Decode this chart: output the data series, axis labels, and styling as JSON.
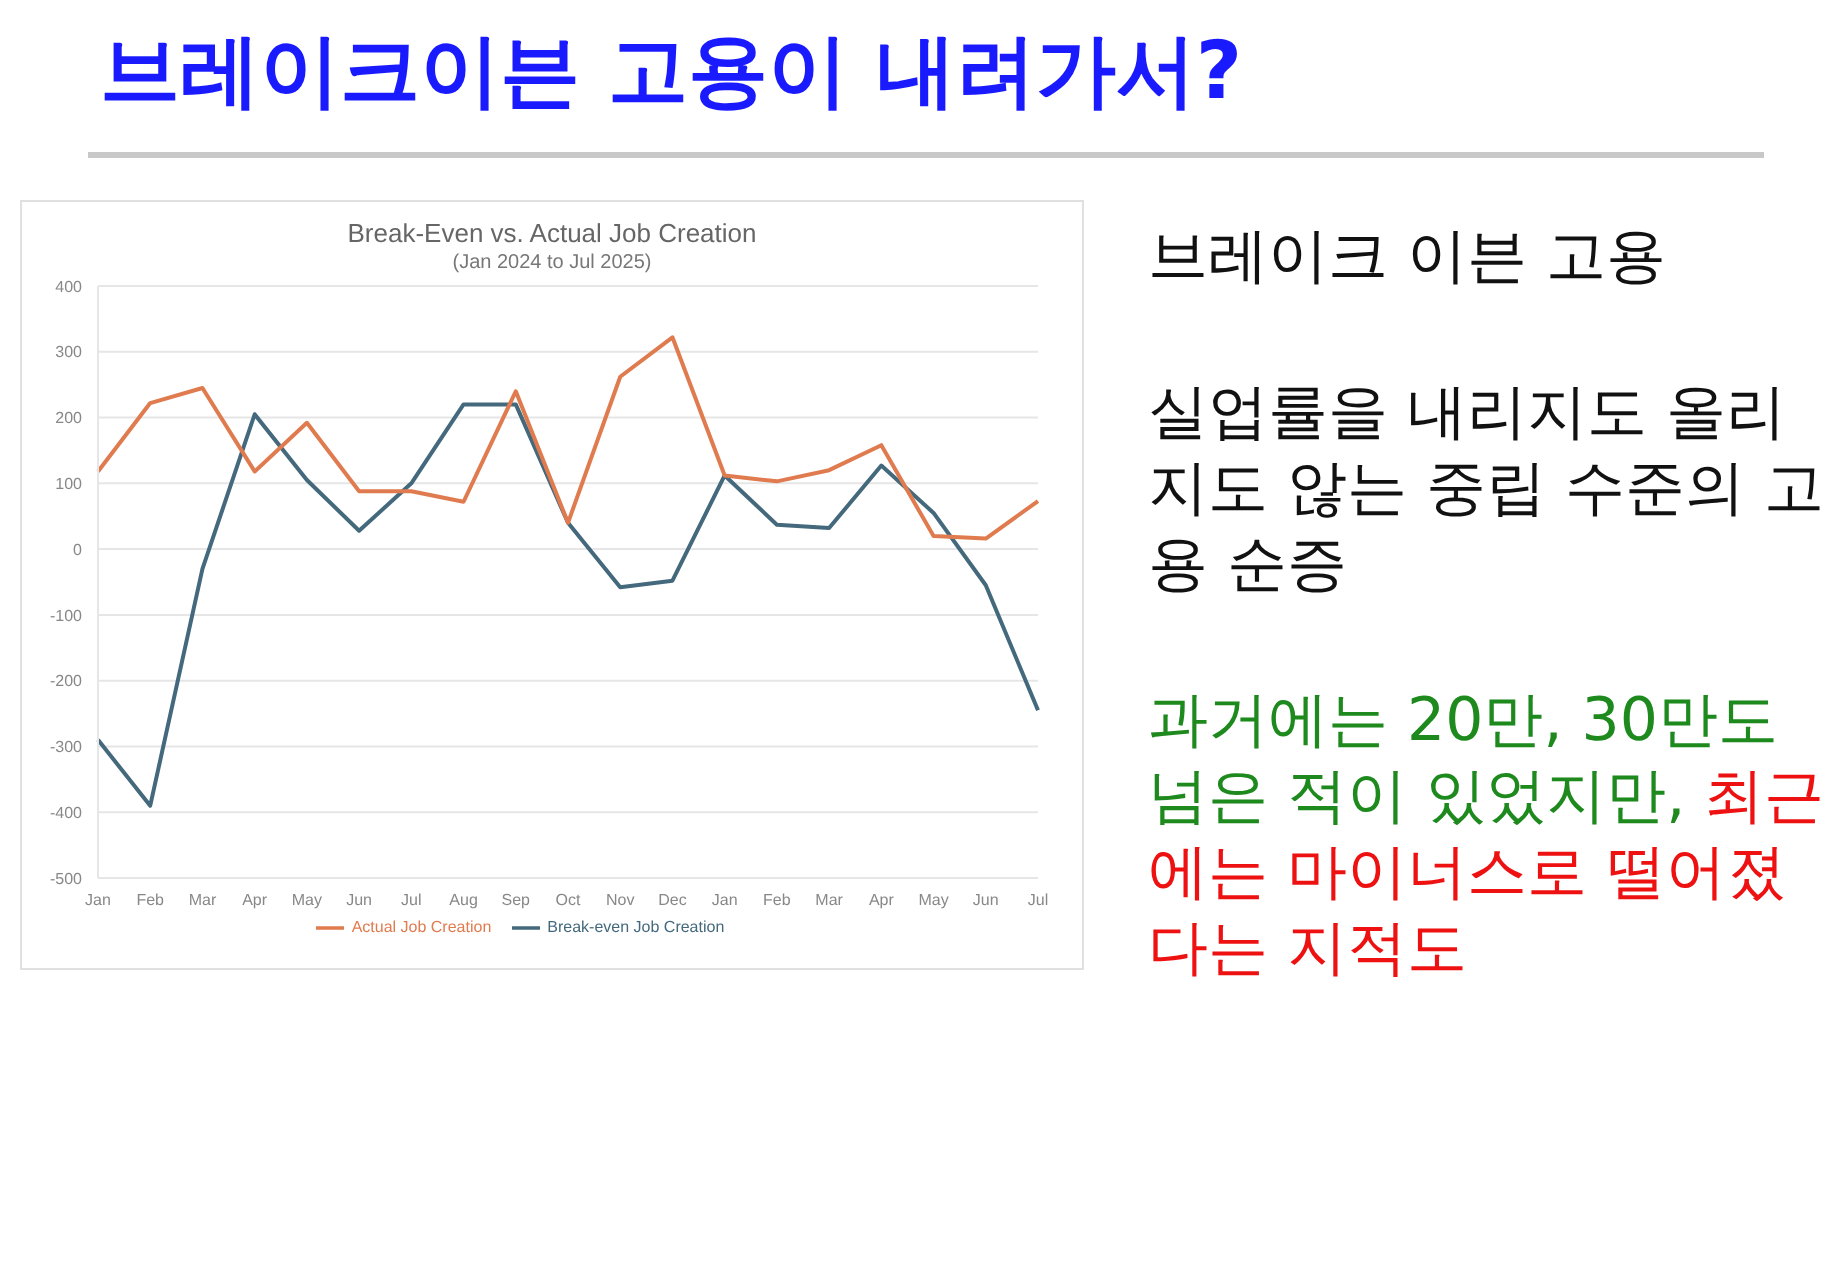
{
  "chart_data": {
    "type": "line",
    "title": "브레이크이븐 고용이 내려가서?",
    "subtitle": "Break-Even  vs. Actual Job Creation",
    "categories": [
      "Jan",
      "Feb",
      "Mar",
      "Apr",
      "May",
      "Jun",
      "Jul",
      "Aug",
      "Sep",
      "Oct",
      "Nov",
      "Dec",
      "Jan",
      "Feb",
      "Mar",
      "Apr",
      "May",
      "Jun",
      "Jul"
    ],
    "series": [
      {
        "name": "Break-even Job Creation",
        "color": "#44697d",
        "values": [
          -290,
          -390,
          -30,
          205,
          105,
          28,
          100,
          220,
          220,
          40,
          -58,
          -48,
          112,
          37,
          32,
          127,
          55,
          -55,
          -245
        ]
      },
      {
        "name": "Actual Job Creation",
        "color": "#e07b4f",
        "values": [
          118,
          222,
          245,
          118,
          192,
          88,
          88,
          72,
          240,
          40,
          262,
          322,
          112,
          103,
          120,
          158,
          20,
          16,
          73
        ]
      }
    ],
    "ylim": [
      -500,
      400
    ],
    "yticks": [
      -500,
      -400,
      -300,
      -200,
      -100,
      0,
      100,
      200,
      300,
      400
    ],
    "grid": "y",
    "legend": "bottom",
    "marker": "none",
    "line_style": "solid",
    "annotations": [
      "(Jan 2024 to Jul 2025)",
      "브레이크 이븐 고용",
      "실업률을 내리지도 올리지도 않는 중립 수준의 고용 순증",
      "과거에는 20만, 30만도 넘은 적이 있었지만,",
      "최근에는 마이너스로 떨어졌다는 지적도"
    ]
  }
}
